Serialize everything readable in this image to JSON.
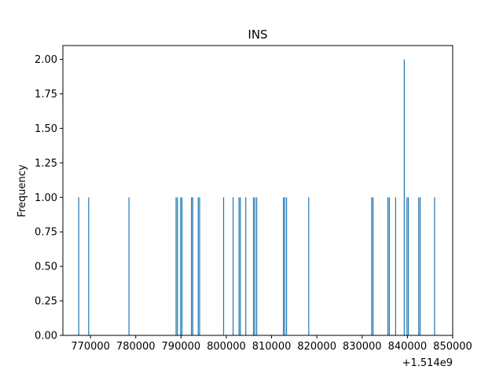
{
  "chart_data": {
    "type": "bar",
    "title": "INS",
    "xlabel": "",
    "ylabel": "Frequency",
    "x_offset_label": "+1.514e9",
    "xlim": [
      763900,
      850000
    ],
    "ylim": [
      0,
      2.1
    ],
    "x_ticks": [
      770000,
      780000,
      790000,
      800000,
      810000,
      820000,
      830000,
      840000,
      850000
    ],
    "x_tick_labels": [
      "770000",
      "780000",
      "790000",
      "800000",
      "810000",
      "820000",
      "830000",
      "840000",
      "850000"
    ],
    "y_ticks": [
      0,
      0.25,
      0.5,
      0.75,
      1.0,
      1.25,
      1.5,
      1.75,
      2.0
    ],
    "y_tick_labels": [
      "0.00",
      "0.25",
      "0.50",
      "0.75",
      "1.00",
      "1.25",
      "1.50",
      "1.75",
      "2.00"
    ],
    "bar_color": "#1f77b4",
    "grid": false,
    "bins": [
      {
        "x": 767400,
        "count": 1
      },
      {
        "x": 769600,
        "count": 1
      },
      {
        "x": 778500,
        "count": 1
      },
      {
        "x": 788900,
        "count": 1
      },
      {
        "x": 789200,
        "count": 1
      },
      {
        "x": 789900,
        "count": 1
      },
      {
        "x": 790200,
        "count": 1
      },
      {
        "x": 792300,
        "count": 1
      },
      {
        "x": 792600,
        "count": 1
      },
      {
        "x": 793800,
        "count": 1
      },
      {
        "x": 794100,
        "count": 1
      },
      {
        "x": 799400,
        "count": 1
      },
      {
        "x": 801500,
        "count": 1
      },
      {
        "x": 802800,
        "count": 1
      },
      {
        "x": 803100,
        "count": 1
      },
      {
        "x": 804300,
        "count": 1
      },
      {
        "x": 806000,
        "count": 1
      },
      {
        "x": 806300,
        "count": 1
      },
      {
        "x": 806700,
        "count": 1
      },
      {
        "x": 812600,
        "count": 1
      },
      {
        "x": 812900,
        "count": 1
      },
      {
        "x": 813300,
        "count": 1
      },
      {
        "x": 818200,
        "count": 1
      },
      {
        "x": 832100,
        "count": 1
      },
      {
        "x": 832400,
        "count": 1
      },
      {
        "x": 835700,
        "count": 1
      },
      {
        "x": 836000,
        "count": 1
      },
      {
        "x": 837400,
        "count": 1
      },
      {
        "x": 839300,
        "count": 2
      },
      {
        "x": 839900,
        "count": 1
      },
      {
        "x": 840200,
        "count": 1
      },
      {
        "x": 842500,
        "count": 1
      },
      {
        "x": 842800,
        "count": 1
      },
      {
        "x": 846000,
        "count": 1
      }
    ]
  }
}
